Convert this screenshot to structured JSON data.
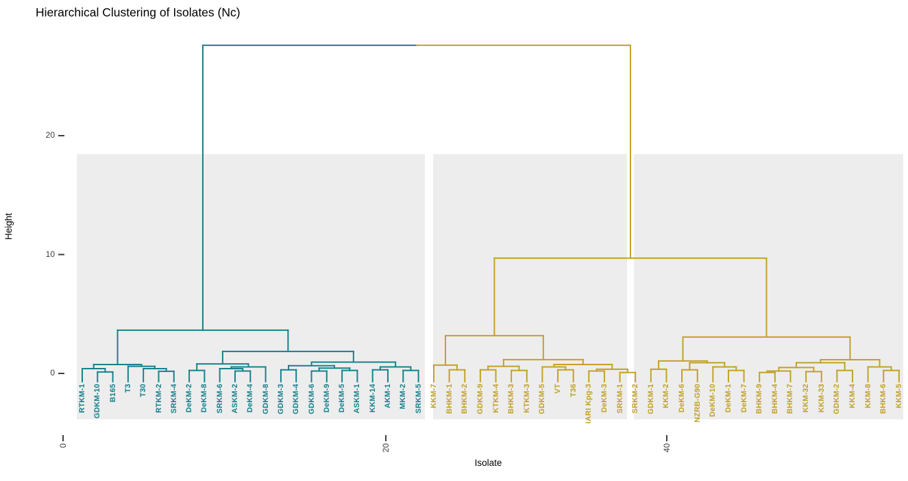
{
  "title": "Hierarchical Clustering of Isolates (Nc)",
  "chart_data": {
    "type": "dendrogram",
    "title": "Hierarchical Clustering of Isolates (Nc)",
    "xlabel": "Isolate",
    "ylabel": "Height",
    "y_ticks": [
      "0",
      "10",
      "20"
    ],
    "y_tick_values": [
      0,
      10,
      20
    ],
    "x_ticks": [
      "0",
      "20",
      "40"
    ],
    "ylim": [
      0,
      28
    ],
    "grid": false,
    "legend": false,
    "panel_fill": "#EDEDED",
    "axis_text_color": "#3d3d3d",
    "clusters": [
      {
        "name": "cluster-1-teal",
        "color": "#17808D",
        "n_leaves": 23
      },
      {
        "name": "cluster-2-gold",
        "color": "#C2A127",
        "n_leaves": 31
      }
    ],
    "tree": {
      "h": 27.6,
      "c": [
        {
          "h": 3.64,
          "c": [
            {
              "h": 0.75,
              "c": [
                {
                  "h": 0.4,
                  "c": [
                    "RTKM-1",
                    {
                      "h": 0.12,
                      "c": [
                        "GDKM-10",
                        "B165"
                      ]
                    }
                  ]
                },
                {
                  "h": 0.6,
                  "c": [
                    "T3",
                    {
                      "h": 0.4,
                      "c": [
                        "T30",
                        {
                          "h": 0.18,
                          "c": [
                            "RTKM-2",
                            "SRKM-4"
                          ]
                        }
                      ]
                    }
                  ]
                }
              ]
            },
            {
              "h": 1.85,
              "c": [
                {
                  "h": 0.8,
                  "c": [
                    {
                      "h": 0.25,
                      "c": [
                        "DeKM-2",
                        "DeKM-8"
                      ]
                    },
                    {
                      "h": 0.55,
                      "c": [
                        {
                          "h": 0.4,
                          "c": [
                            "SRKM-6",
                            {
                              "h": 0.2,
                              "c": [
                                "ASKM-2",
                                "DeKM-4"
                              ]
                            }
                          ]
                        },
                        "GDKM-8"
                      ]
                    }
                  ]
                },
                {
                  "h": 0.95,
                  "c": [
                    {
                      "h": 0.65,
                      "c": [
                        {
                          "h": 0.3,
                          "c": [
                            "GDKM-3",
                            "GDKM-4"
                          ]
                        },
                        {
                          "h": 0.45,
                          "c": [
                            {
                              "h": 0.2,
                              "c": [
                                "GDKM-6",
                                "DeKM-9"
                              ]
                            },
                            {
                              "h": 0.25,
                              "c": [
                                "DeKM-5",
                                "ASKM-1"
                              ]
                            }
                          ]
                        }
                      ]
                    },
                    {
                      "h": 0.55,
                      "c": [
                        {
                          "h": 0.3,
                          "c": [
                            "KKM-14",
                            "AKM-1"
                          ]
                        },
                        {
                          "h": 0.25,
                          "c": [
                            "MKM-2",
                            "SRKM-5"
                          ]
                        }
                      ]
                    }
                  ]
                }
              ]
            }
          ]
        },
        {
          "h": 9.7,
          "c": [
            {
              "h": 3.18,
              "c": [
                {
                  "h": 0.7,
                  "c": [
                    "KKM-7",
                    {
                      "h": 0.3,
                      "c": [
                        "BHKM-1",
                        "BHKM-2"
                      ]
                    }
                  ]
                },
                {
                  "h": 1.16,
                  "c": [
                    {
                      "h": 0.6,
                      "c": [
                        {
                          "h": 0.3,
                          "c": [
                            "GDKM-9",
                            "KTKM-4"
                          ]
                        },
                        {
                          "h": 0.25,
                          "c": [
                            "BHKM-3",
                            "KTKM-3"
                          ]
                        }
                      ]
                    },
                    {
                      "h": 0.75,
                      "c": [
                        {
                          "h": 0.55,
                          "c": [
                            "GDKM-5",
                            {
                              "h": 0.3,
                              "c": [
                                "VT",
                                "T36"
                              ]
                            }
                          ]
                        },
                        {
                          "h": 0.35,
                          "c": [
                            {
                              "h": 0.2,
                              "c": [
                                "IARI Kpg-3",
                                "DeKM-3"
                              ]
                            },
                            {
                              "h": 0.08,
                              "c": [
                                "SRKM-1",
                                "SRKM-2"
                              ]
                            }
                          ]
                        }
                      ]
                    }
                  ]
                }
              ]
            },
            {
              "h": 3.06,
              "c": [
                {
                  "h": 1.05,
                  "c": [
                    {
                      "h": 0.35,
                      "c": [
                        "GDKM-1",
                        "KKM-2"
                      ]
                    },
                    {
                      "h": 0.9,
                      "c": [
                        {
                          "h": 0.3,
                          "c": [
                            "DeKM-6",
                            "NZRB-G90"
                          ]
                        },
                        {
                          "h": 0.55,
                          "c": [
                            "DeKM-10",
                            {
                              "h": 0.25,
                              "c": [
                                "DeKM-1",
                                "DeKM-7"
                              ]
                            }
                          ]
                        }
                      ]
                    }
                  ]
                },
                {
                  "h": 1.15,
                  "c": [
                    {
                      "h": 0.9,
                      "c": [
                        {
                          "h": 0.5,
                          "c": [
                            {
                              "h": 0.2,
                              "c": [
                                {
                                  "h": 0.08,
                                  "c": [
                                    "BHKM-9",
                                    "BHKM-4"
                                  ]
                                },
                                "BHKM-7"
                              ]
                            },
                            {
                              "h": 0.15,
                              "c": [
                                "KKM-32",
                                "KKM-33"
                              ]
                            }
                          ]
                        },
                        {
                          "h": 0.25,
                          "c": [
                            "GDKM-2",
                            "KKM-4"
                          ]
                        }
                      ]
                    },
                    {
                      "h": 0.55,
                      "c": [
                        "KKM-8",
                        {
                          "h": 0.25,
                          "c": [
                            "BHKM-6",
                            "KKM-5"
                          ]
                        }
                      ]
                    }
                  ]
                }
              ]
            }
          ]
        }
      ]
    }
  }
}
